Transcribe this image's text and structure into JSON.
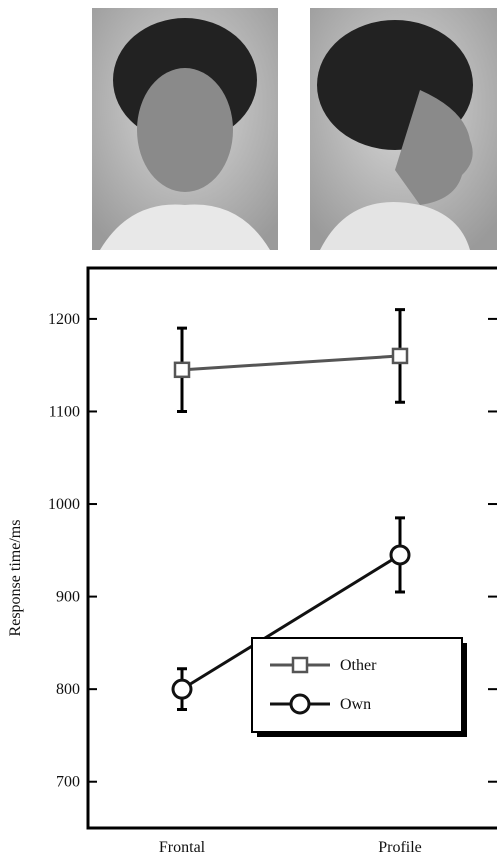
{
  "chart_data": {
    "type": "line",
    "y_label": "Response time/ms",
    "categories": [
      "Frontal",
      "Profile"
    ],
    "series": [
      {
        "name": "Other",
        "color": "#555555",
        "marker": "square",
        "values": [
          1145,
          1160
        ],
        "errors": [
          45,
          50
        ]
      },
      {
        "name": "Own",
        "color": "#111111",
        "marker": "circle",
        "values": [
          800,
          945
        ],
        "errors": [
          22,
          40
        ]
      }
    ],
    "ylim": [
      650,
      1255
    ],
    "yticks": [
      700,
      800,
      900,
      1000,
      1100,
      1200
    ],
    "legend": "lower-right"
  }
}
